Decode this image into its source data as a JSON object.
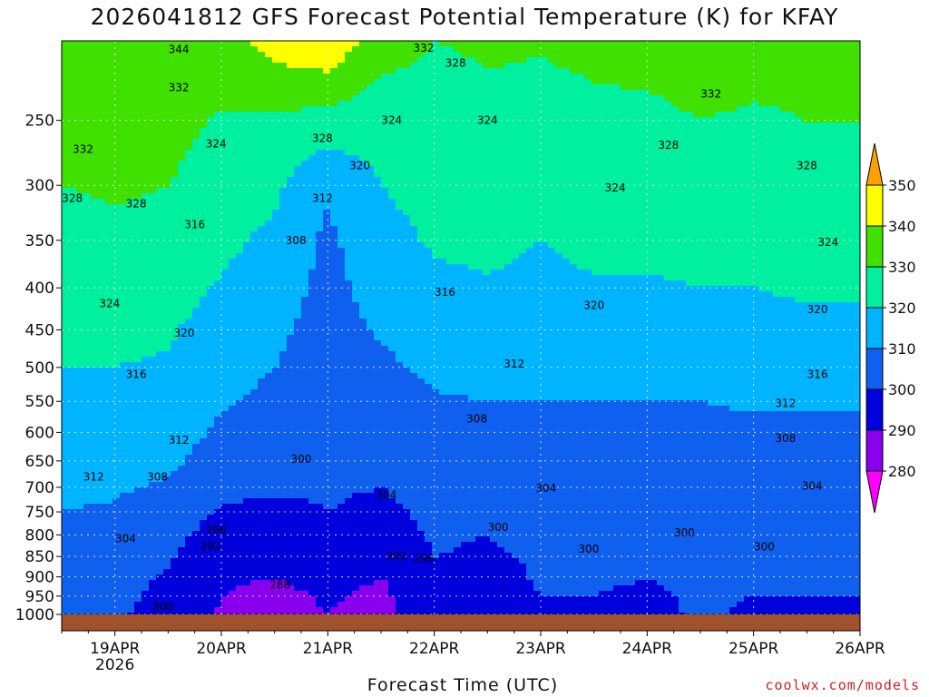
{
  "title": "2026041812 GFS Forecast Potential Temperature (K) for KFAY",
  "xlabel": "Forecast Time (UTC)",
  "credit": "coolwx.com/models",
  "chart_data": {
    "type": "heatmap",
    "title": "2026041812 GFS Forecast Potential Temperature (K) for KFAY",
    "xlabel": "Forecast Time (UTC)",
    "ylabel": "",
    "x_ticks": [
      {
        "label": "19APR",
        "sub": "2026",
        "t": 0
      },
      {
        "label": "20APR",
        "sub": "",
        "t": 1
      },
      {
        "label": "21APR",
        "sub": "",
        "t": 2
      },
      {
        "label": "22APR",
        "sub": "",
        "t": 3
      },
      {
        "label": "23APR",
        "sub": "",
        "t": 4
      },
      {
        "label": "24APR",
        "sub": "",
        "t": 5
      },
      {
        "label": "25APR",
        "sub": "",
        "t": 6
      },
      {
        "label": "26APR",
        "sub": "",
        "t": 7
      }
    ],
    "x_range_days": [
      -0.5,
      7
    ],
    "y_levels": [
      1000,
      950,
      900,
      850,
      800,
      750,
      700,
      650,
      600,
      550,
      500,
      450,
      400,
      350,
      300,
      250
    ],
    "y_range_hpa": [
      1000,
      200
    ],
    "y_scale": "log-pressure (inverted)",
    "colorbar": {
      "levels": [
        280,
        290,
        300,
        310,
        320,
        330,
        340,
        350
      ],
      "colors": [
        "#ff00ff",
        "#8800ee",
        "#0000dd",
        "#1060f0",
        "#00b4ff",
        "#00f0a0",
        "#40e000",
        "#ffff00",
        "#ffa000"
      ]
    },
    "contour_interval": 4,
    "profiles": {
      "x_days": [
        -0.5,
        0,
        0.5,
        1,
        1.5,
        2,
        2.5,
        3,
        3.5,
        4,
        4.5,
        5,
        5.5,
        6,
        6.5,
        7
      ],
      "pressure_hpa": [
        1000,
        950,
        900,
        850,
        800,
        750,
        700,
        650,
        600,
        550,
        500,
        450,
        400,
        350,
        300,
        250,
        200
      ],
      "theta_k": [
        [
          303,
          304,
          305,
          307,
          308,
          310,
          312,
          314,
          316,
          318,
          320,
          322,
          325,
          327,
          330,
          333,
          338
        ],
        [
          301,
          302,
          303,
          305,
          307,
          309,
          311,
          313,
          315,
          318,
          320,
          322,
          325,
          328,
          331,
          333,
          337
        ],
        [
          297,
          298,
          299,
          301,
          303,
          306,
          309,
          312,
          315,
          317,
          319,
          321,
          324,
          327,
          330,
          333,
          338
        ],
        [
          289,
          290,
          291,
          293,
          296,
          299,
          302,
          305,
          308,
          311,
          313,
          316,
          319,
          322,
          325,
          329,
          336
        ],
        [
          287,
          288,
          290,
          292,
          295,
          298,
          301,
          304,
          306,
          308,
          310,
          312,
          315,
          318,
          322,
          328,
          344
        ],
        [
          290,
          291,
          293,
          296,
          299,
          300,
          301,
          302,
          303,
          304,
          305,
          306,
          307,
          308,
          311,
          326,
          348
        ],
        [
          287,
          288,
          290,
          292,
          296,
          298,
          300,
          302,
          304,
          306,
          308,
          311,
          314,
          317,
          320,
          324,
          334
        ],
        [
          296,
          297,
          298,
          300,
          301,
          302,
          303,
          304,
          306,
          309,
          312,
          315,
          318,
          321,
          323,
          326,
          330
        ],
        [
          295,
          296,
          297,
          299,
          300,
          301,
          303,
          305,
          307,
          310,
          313,
          316,
          319,
          322,
          325,
          328,
          331
        ],
        [
          299,
          300,
          301,
          301,
          302,
          302,
          303,
          305,
          307,
          310,
          312,
          315,
          318,
          320,
          323,
          326,
          331
        ],
        [
          300,
          300,
          301,
          301,
          302,
          303,
          304,
          306,
          308,
          310,
          312,
          315,
          319,
          322,
          325,
          328,
          332
        ],
        [
          298,
          299,
          300,
          301,
          302,
          303,
          304,
          306,
          308,
          310,
          312,
          315,
          319,
          322,
          325,
          328,
          333
        ],
        [
          301,
          301,
          301,
          302,
          302,
          303,
          304,
          306,
          308,
          310,
          313,
          316,
          320,
          323,
          326,
          330,
          334
        ],
        [
          299,
          300,
          301,
          302,
          302,
          303,
          304,
          306,
          308,
          311,
          314,
          317,
          320,
          323,
          326,
          329,
          333
        ],
        [
          300,
          300,
          301,
          302,
          302,
          303,
          304,
          306,
          308,
          311,
          315,
          318,
          321,
          324,
          327,
          330,
          333
        ],
        [
          299,
          300,
          301,
          302,
          302,
          303,
          304,
          306,
          308,
          311,
          315,
          318,
          321,
          324,
          327,
          330,
          333
        ]
      ]
    },
    "contour_labels": [
      {
        "text": "344",
        "day": 0.6,
        "p": 205
      },
      {
        "text": "332",
        "day": 0.6,
        "p": 228
      },
      {
        "text": "332",
        "day": 2.9,
        "p": 204
      },
      {
        "text": "328",
        "day": 3.2,
        "p": 213
      },
      {
        "text": "332",
        "day": 5.6,
        "p": 232
      },
      {
        "text": "332",
        "day": -0.3,
        "p": 271
      },
      {
        "text": "324",
        "day": 0.95,
        "p": 267
      },
      {
        "text": "328",
        "day": 1.95,
        "p": 263
      },
      {
        "text": "324",
        "day": 2.6,
        "p": 250
      },
      {
        "text": "324",
        "day": 3.5,
        "p": 250
      },
      {
        "text": "328",
        "day": 5.2,
        "p": 268
      },
      {
        "text": "328",
        "day": 6.5,
        "p": 284
      },
      {
        "text": "320",
        "day": 2.3,
        "p": 284
      },
      {
        "text": "324",
        "day": 4.7,
        "p": 302
      },
      {
        "text": "328",
        "day": 0.2,
        "p": 316
      },
      {
        "text": "328",
        "day": -0.4,
        "p": 311
      },
      {
        "text": "312",
        "day": 1.95,
        "p": 311
      },
      {
        "text": "316",
        "day": 0.75,
        "p": 335
      },
      {
        "text": "308",
        "day": 1.7,
        "p": 350
      },
      {
        "text": "324",
        "day": 6.7,
        "p": 352
      },
      {
        "text": "324",
        "day": -0.05,
        "p": 418
      },
      {
        "text": "316",
        "day": 3.1,
        "p": 405
      },
      {
        "text": "320",
        "day": 4.5,
        "p": 420
      },
      {
        "text": "320",
        "day": 6.6,
        "p": 425
      },
      {
        "text": "320",
        "day": 0.65,
        "p": 454
      },
      {
        "text": "316",
        "day": 0.2,
        "p": 510
      },
      {
        "text": "312",
        "day": 3.75,
        "p": 495
      },
      {
        "text": "316",
        "day": 6.6,
        "p": 510
      },
      {
        "text": "312",
        "day": 6.3,
        "p": 553
      },
      {
        "text": "308",
        "day": 3.4,
        "p": 578
      },
      {
        "text": "308",
        "day": 6.3,
        "p": 610
      },
      {
        "text": "312",
        "day": 0.6,
        "p": 613
      },
      {
        "text": "308",
        "day": 0.4,
        "p": 680
      },
      {
        "text": "312",
        "day": -0.2,
        "p": 680
      },
      {
        "text": "300",
        "day": 1.75,
        "p": 647
      },
      {
        "text": "304",
        "day": 2.55,
        "p": 715
      },
      {
        "text": "304",
        "day": 4.05,
        "p": 702
      },
      {
        "text": "304",
        "day": 6.55,
        "p": 697
      },
      {
        "text": "304",
        "day": 0.1,
        "p": 808
      },
      {
        "text": "300",
        "day": 3.6,
        "p": 783
      },
      {
        "text": "300",
        "day": 5.35,
        "p": 795
      },
      {
        "text": "300",
        "day": 6.1,
        "p": 827
      },
      {
        "text": "300",
        "day": 4.45,
        "p": 833
      },
      {
        "text": "296",
        "day": 0.95,
        "p": 790
      },
      {
        "text": "292",
        "day": 0.9,
        "p": 826
      },
      {
        "text": "292",
        "day": 2.65,
        "p": 850
      },
      {
        "text": "296",
        "day": 2.9,
        "p": 855
      },
      {
        "text": "288",
        "day": 1.55,
        "p": 920
      },
      {
        "text": "300",
        "day": 0.45,
        "p": 978
      }
    ],
    "terrain_color": "#a0522d",
    "grid": "dotted, on"
  }
}
